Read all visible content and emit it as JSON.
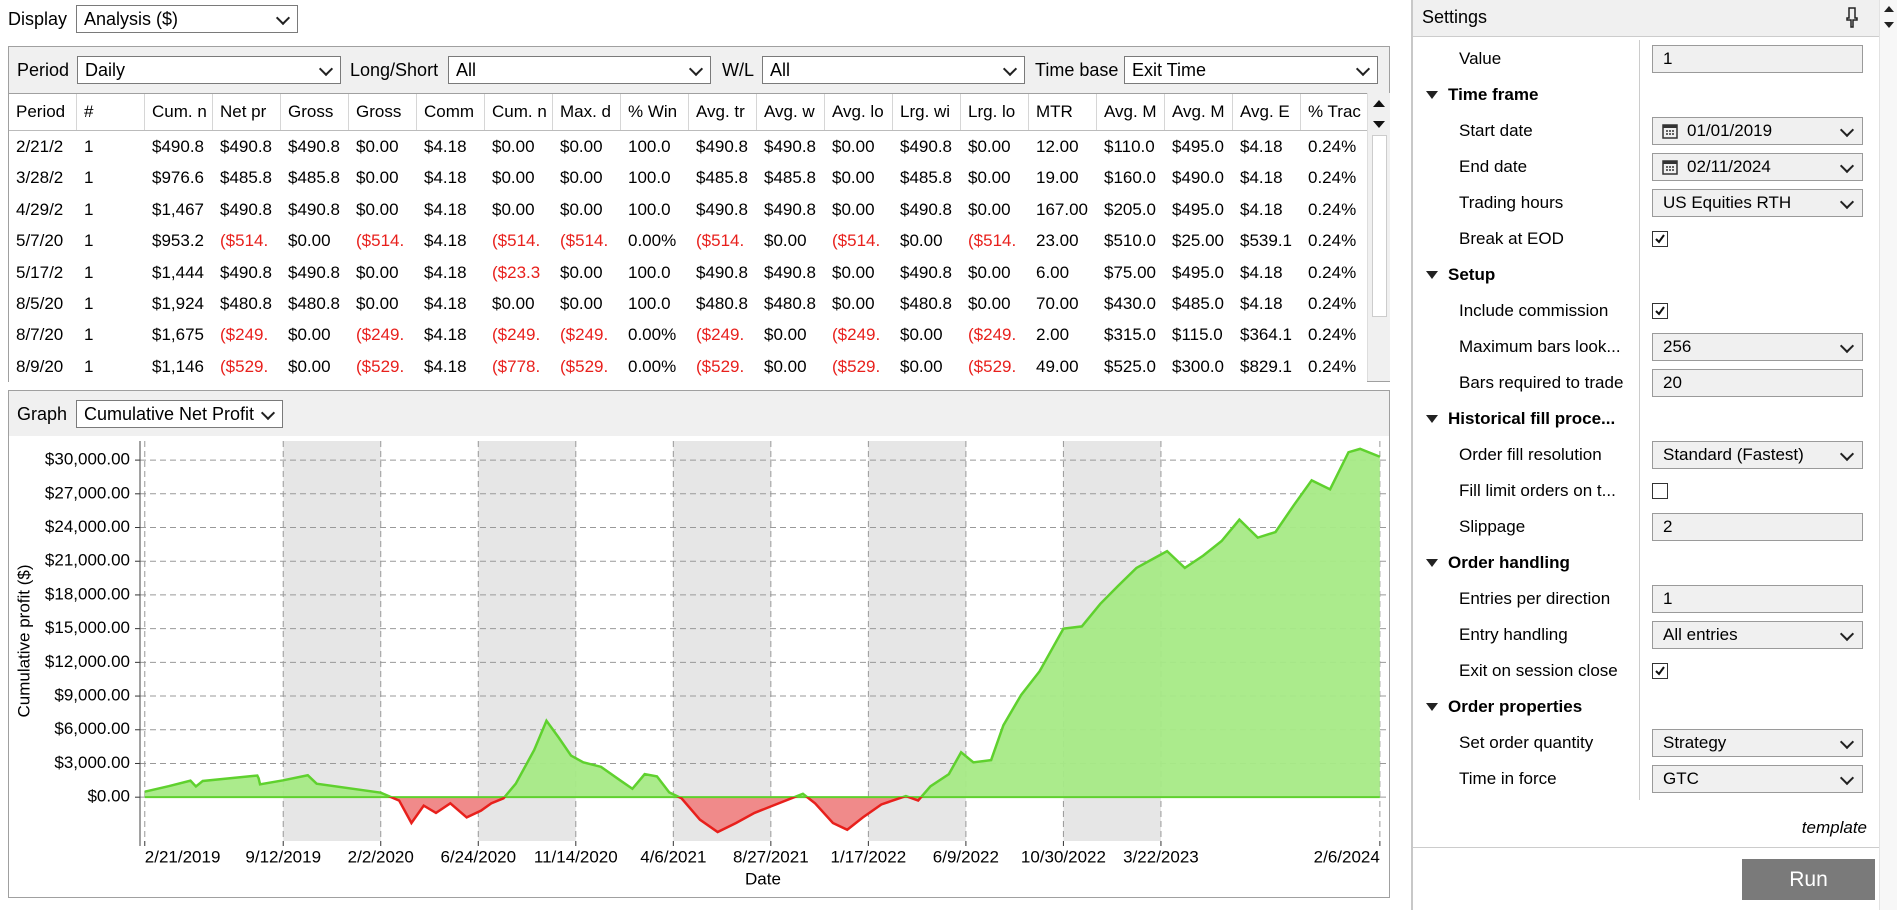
{
  "toolbar": {
    "label": "Display",
    "value": "Analysis ($)"
  },
  "filters": [
    {
      "label": "Period",
      "value": "Daily"
    },
    {
      "label": "Long/Short",
      "value": "All"
    },
    {
      "label": "W/L",
      "value": "All"
    },
    {
      "label": "Time base",
      "value": "Exit Time"
    }
  ],
  "table": {
    "headers": [
      "Period",
      "#",
      "Cum. n",
      "Net pr",
      "Gross",
      "Gross",
      "Comm",
      "Cum. n",
      "Max. d",
      "% Win",
      "Avg. tr",
      "Avg. w",
      "Avg. lo",
      "Lrg. wi",
      "Lrg. lo",
      "MTR",
      "Avg. M",
      "Avg. M",
      "Avg. E",
      "% Trac"
    ],
    "rows": [
      [
        "2/21/2",
        "1",
        "$490.8",
        "$490.8",
        "$490.8",
        "$0.00",
        "$4.18",
        "$0.00",
        "$0.00",
        "100.0",
        "$490.8",
        "$490.8",
        "$0.00",
        "$490.8",
        "$0.00",
        "12.00",
        "$110.0",
        "$495.0",
        "$4.18",
        "0.24%"
      ],
      [
        "3/28/2",
        "1",
        "$976.6",
        "$485.8",
        "$485.8",
        "$0.00",
        "$4.18",
        "$0.00",
        "$0.00",
        "100.0",
        "$485.8",
        "$485.8",
        "$0.00",
        "$485.8",
        "$0.00",
        "19.00",
        "$160.0",
        "$490.0",
        "$4.18",
        "0.24%"
      ],
      [
        "4/29/2",
        "1",
        "$1,467",
        "$490.8",
        "$490.8",
        "$0.00",
        "$4.18",
        "$0.00",
        "$0.00",
        "100.0",
        "$490.8",
        "$490.8",
        "$0.00",
        "$490.8",
        "$0.00",
        "167.00",
        "$205.0",
        "$495.0",
        "$4.18",
        "0.24%"
      ],
      [
        "5/7/20",
        "1",
        "$953.2",
        "($514.",
        "$0.00",
        "($514.",
        "$4.18",
        "($514.",
        "($514.",
        "0.00%",
        "($514.",
        "$0.00",
        "($514.",
        "$0.00",
        "($514.",
        "23.00",
        "$510.0",
        "$25.00",
        "$539.1",
        "0.24%"
      ],
      [
        "5/17/2",
        "1",
        "$1,444",
        "$490.8",
        "$490.8",
        "$0.00",
        "$4.18",
        "($23.3",
        "$0.00",
        "100.0",
        "$490.8",
        "$490.8",
        "$0.00",
        "$490.8",
        "$0.00",
        "6.00",
        "$75.00",
        "$495.0",
        "$4.18",
        "0.24%"
      ],
      [
        "8/5/20",
        "1",
        "$1,924",
        "$480.8",
        "$480.8",
        "$0.00",
        "$4.18",
        "$0.00",
        "$0.00",
        "100.0",
        "$480.8",
        "$480.8",
        "$0.00",
        "$480.8",
        "$0.00",
        "70.00",
        "$430.0",
        "$485.0",
        "$4.18",
        "0.24%"
      ],
      [
        "8/7/20",
        "1",
        "$1,675",
        "($249.",
        "$0.00",
        "($249.",
        "$4.18",
        "($249.",
        "($249.",
        "0.00%",
        "($249.",
        "$0.00",
        "($249.",
        "$0.00",
        "($249.",
        "2.00",
        "$315.0",
        "$115.0",
        "$364.1",
        "0.24%"
      ],
      [
        "8/9/20",
        "1",
        "$1,146",
        "($529.",
        "$0.00",
        "($529.",
        "$4.18",
        "($778.",
        "($529.",
        "0.00%",
        "($529.",
        "$0.00",
        "($529.",
        "$0.00",
        "($529.",
        "49.00",
        "$525.0",
        "$300.0",
        "$829.1",
        "0.24%"
      ]
    ]
  },
  "graph": {
    "label": "Graph",
    "value": "Cumulative Net Profit"
  },
  "chart_data": {
    "type": "area",
    "x_label": "Date",
    "y_label": "Cumulative profit ($)",
    "color": "#5fd12e",
    "fill": "#a6ea86",
    "negative_color": "#e8201c",
    "negative_fill": "#f08a8a",
    "grid": true,
    "xlim": [
      "2/14/2019",
      "2/15/2024"
    ],
    "xticks": [
      "2/21/2019",
      "9/12/2019",
      "2/2/2020",
      "6/24/2020",
      "11/14/2020",
      "4/6/2021",
      "8/27/2021",
      "1/17/2022",
      "6/9/2022",
      "10/30/2022",
      "3/22/2023",
      "2/6/2024"
    ],
    "ylim": [
      -3900,
      31700
    ],
    "yticks": [
      {
        "value": 0,
        "label": "$0.00"
      },
      {
        "value": 3000,
        "label": "$3,000.00"
      },
      {
        "value": 6000,
        "label": "$6,000.00"
      },
      {
        "value": 9000,
        "label": "$9,000.00"
      },
      {
        "value": 12000,
        "label": "$12,000.00"
      },
      {
        "value": 15000,
        "label": "$15,000.00"
      },
      {
        "value": 18000,
        "label": "$18,000.00"
      },
      {
        "value": 21000,
        "label": "$21,000.00"
      },
      {
        "value": 24000,
        "label": "$24,000.00"
      },
      {
        "value": 27000,
        "label": "$27,000.00"
      },
      {
        "value": 30000,
        "label": "$30,000.00"
      }
    ],
    "x": [
      "2/21/2019",
      "3/28/2019",
      "4/29/2019",
      "5/7/2019",
      "5/17/2019",
      "8/5/2019",
      "8/7/2019",
      "8/9/2019",
      "9/12/2019",
      "10/18/2019",
      "10/31/2019",
      "2/2/2020",
      "2/29/2020",
      "3/18/2020",
      "4/5/2020",
      "4/23/2020",
      "5/14/2020",
      "6/7/2020",
      "6/28/2020",
      "7/13/2020",
      "7/31/2020",
      "8/18/2020",
      "9/14/2020",
      "10/2/2020",
      "10/20/2020",
      "11/7/2020",
      "11/25/2020",
      "12/21/2020",
      "1/18/2021",
      "2/5/2021",
      "2/23/2021",
      "3/13/2021",
      "3/31/2021",
      "4/18/2021",
      "5/15/2021",
      "6/10/2021",
      "7/7/2021",
      "8/3/2021",
      "8/30/2021",
      "10/13/2021",
      "10/31/2021",
      "11/26/2021",
      "12/17/2021",
      "1/9/2022",
      "2/5/2022",
      "3/13/2022",
      "3/31/2022",
      "4/18/2022",
      "5/15/2022",
      "6/2/2022",
      "6/20/2022",
      "7/16/2022",
      "8/3/2022",
      "8/29/2022",
      "9/25/2022",
      "10/30/2022",
      "11/26/2022",
      "12/23/2022",
      "1/18/2023",
      "2/14/2023",
      "3/13/2023",
      "3/31/2023",
      "4/26/2023",
      "5/23/2023",
      "6/19/2023",
      "7/15/2023",
      "8/11/2023",
      "9/6/2023",
      "10/3/2023",
      "10/29/2023",
      "11/25/2023",
      "12/22/2023",
      "1/8/2024",
      "2/6/2024"
    ],
    "values": [
      490,
      976,
      1467,
      953,
      1444,
      1924,
      1675,
      1146,
      1500,
      1950,
      1200,
      400,
      -300,
      -2300,
      -750,
      -1400,
      -550,
      -1800,
      -1200,
      -550,
      -100,
      1200,
      4200,
      6800,
      5300,
      3700,
      3100,
      2700,
      1500,
      750,
      2050,
      1850,
      430,
      -100,
      -2000,
      -3100,
      -2300,
      -1400,
      -750,
      300,
      -550,
      -2300,
      -2900,
      -1800,
      -650,
      100,
      -300,
      970,
      2050,
      4000,
      3100,
      3300,
      6400,
      9100,
      11200,
      15000,
      15200,
      17200,
      18800,
      20400,
      21300,
      21900,
      20400,
      21500,
      22800,
      24700,
      23100,
      23600,
      26000,
      28200,
      27400,
      30700,
      31000,
      30300
    ]
  },
  "settings": {
    "title": "Settings",
    "rows": [
      {
        "label": "Value",
        "kind": "text",
        "value": "1"
      },
      {
        "label": "Time frame",
        "kind": "section"
      },
      {
        "label": "Start date",
        "kind": "date",
        "value": "01/01/2019"
      },
      {
        "label": "End date",
        "kind": "date",
        "value": "02/11/2024"
      },
      {
        "label": "Trading hours",
        "kind": "dropdown",
        "value": "US Equities RTH"
      },
      {
        "label": "Break at EOD",
        "kind": "checkbox",
        "checked": true
      },
      {
        "label": "Setup",
        "kind": "section"
      },
      {
        "label": "Include commission",
        "kind": "checkbox",
        "checked": true
      },
      {
        "label": "Maximum bars look...",
        "kind": "dropdown",
        "value": "256"
      },
      {
        "label": "Bars required to trade",
        "kind": "text",
        "value": "20"
      },
      {
        "label": "Historical fill proce...",
        "kind": "section"
      },
      {
        "label": "Order fill resolution",
        "kind": "dropdown",
        "value": "Standard (Fastest)"
      },
      {
        "label": "Fill limit orders on t...",
        "kind": "checkbox",
        "checked": false
      },
      {
        "label": "Slippage",
        "kind": "text",
        "value": "2"
      },
      {
        "label": "Order handling",
        "kind": "section"
      },
      {
        "label": "Entries per direction",
        "kind": "text",
        "value": "1"
      },
      {
        "label": "Entry handling",
        "kind": "dropdown",
        "value": "All entries"
      },
      {
        "label": "Exit on session close",
        "kind": "checkbox",
        "checked": true
      },
      {
        "label": "Order properties",
        "kind": "section"
      },
      {
        "label": "Set order quantity",
        "kind": "dropdown",
        "value": "Strategy"
      },
      {
        "label": "Time in force",
        "kind": "dropdown",
        "value": "GTC"
      }
    ],
    "footer": "template",
    "run": "Run"
  }
}
